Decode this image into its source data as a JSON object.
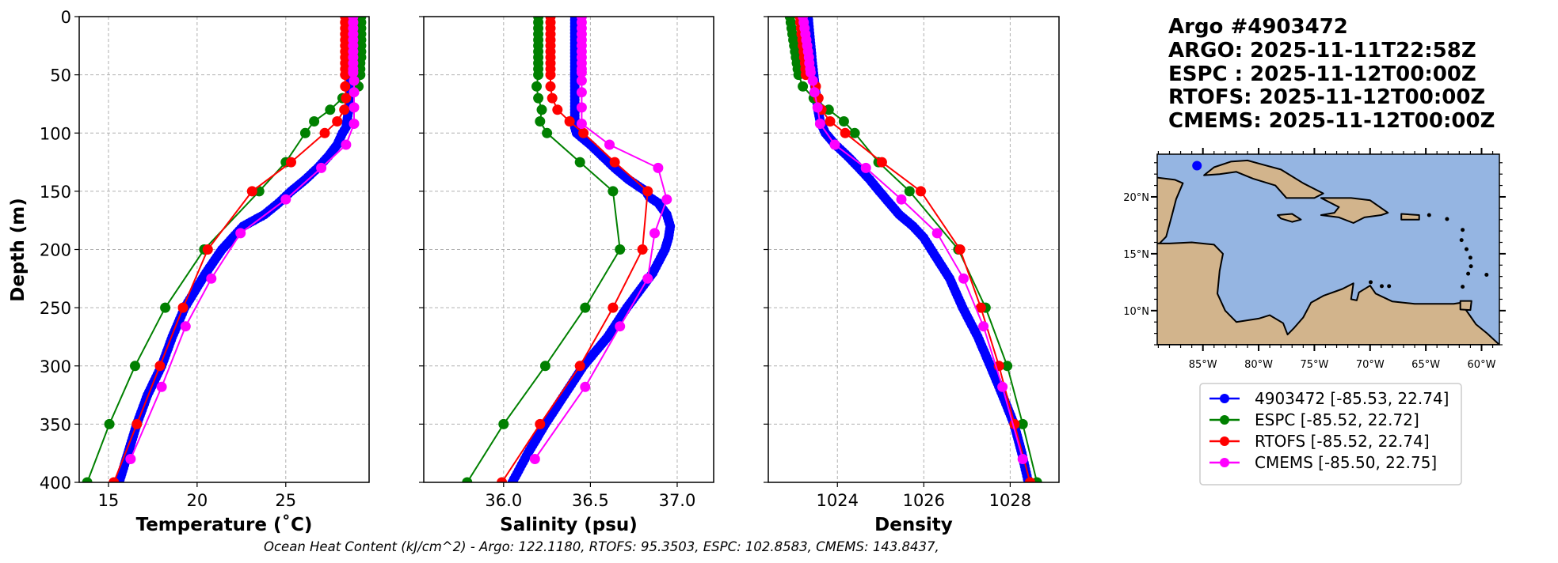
{
  "chart_data": [
    {
      "type": "line",
      "id": "temperature",
      "xlabel": "Temperature (˚C)",
      "ylabel": "Depth (m)",
      "xlim": [
        13.35,
        29.7
      ],
      "ylim": [
        400,
        0
      ],
      "xticks": [
        15,
        20,
        25
      ],
      "yticks": [
        0,
        50,
        100,
        150,
        200,
        250,
        300,
        350,
        400
      ],
      "grid": true,
      "series": [
        {
          "name": "ESPC",
          "color": "#008000",
          "style": "model",
          "depth": [
            0,
            5,
            10,
            15,
            20,
            25,
            30,
            35,
            40,
            45,
            50,
            60,
            70,
            80,
            90,
            100,
            125,
            150,
            200,
            250,
            300,
            350,
            400
          ],
          "values": [
            29.25,
            29.25,
            29.25,
            29.25,
            29.25,
            29.25,
            29.25,
            29.25,
            29.2,
            29.2,
            29.2,
            29.1,
            28.2,
            27.5,
            26.6,
            26.1,
            25.0,
            23.5,
            20.4,
            18.2,
            16.5,
            15.05,
            13.8
          ]
        },
        {
          "name": "RTOFS",
          "color": "#ff0000",
          "style": "model",
          "depth": [
            0,
            5,
            10,
            15,
            20,
            25,
            30,
            35,
            40,
            45,
            50,
            60,
            70,
            80,
            90,
            100,
            125,
            150,
            200,
            250,
            300,
            350,
            400
          ],
          "values": [
            28.35,
            28.35,
            28.35,
            28.35,
            28.35,
            28.35,
            28.35,
            28.35,
            28.35,
            28.35,
            28.35,
            28.35,
            28.4,
            28.3,
            27.9,
            27.2,
            25.3,
            23.1,
            20.6,
            19.2,
            17.9,
            16.6,
            15.3
          ]
        },
        {
          "name": "CMEMS",
          "color": "#ff00ff",
          "style": "model",
          "depth": [
            0,
            5,
            10,
            15,
            20,
            25,
            30,
            35,
            40,
            45,
            48,
            55,
            65,
            78,
            92,
            110,
            130,
            157,
            186,
            225,
            266,
            318,
            380
          ],
          "values": [
            28.8,
            28.8,
            28.8,
            28.8,
            28.8,
            28.8,
            28.8,
            28.8,
            28.8,
            28.8,
            28.8,
            28.85,
            28.85,
            28.85,
            28.85,
            28.4,
            27.0,
            25.0,
            22.45,
            20.8,
            19.35,
            18.0,
            16.25
          ]
        },
        {
          "name": "4903472",
          "color": "#0000ff",
          "style": "argo",
          "depth": [
            0,
            20,
            40,
            60,
            80,
            95,
            100,
            110,
            120,
            130,
            140,
            150,
            160,
            170,
            180,
            190,
            200,
            220,
            250,
            275,
            300,
            325,
            350,
            375,
            400
          ],
          "values": [
            28.7,
            28.7,
            28.7,
            28.65,
            28.55,
            28.4,
            28.2,
            27.9,
            27.4,
            26.8,
            26.1,
            25.3,
            24.6,
            23.8,
            22.6,
            22.0,
            21.4,
            20.5,
            19.3,
            18.6,
            18.0,
            17.2,
            16.6,
            16.1,
            15.6
          ]
        }
      ]
    },
    {
      "type": "line",
      "id": "salinity",
      "xlabel": "Salinity (psu)",
      "ylabel": "",
      "xlim": [
        35.54,
        37.21
      ],
      "ylim": [
        400,
        0
      ],
      "xticks": [
        36.0,
        36.5,
        37.0
      ],
      "xtick_labels": [
        "36.0",
        "36.5",
        "37.0"
      ],
      "yticks": [
        0,
        50,
        100,
        150,
        200,
        250,
        300,
        350,
        400
      ],
      "grid": true,
      "series": [
        {
          "name": "ESPC",
          "color": "#008000",
          "style": "model",
          "depth": [
            0,
            5,
            10,
            15,
            20,
            25,
            30,
            35,
            40,
            45,
            50,
            60,
            70,
            80,
            90,
            100,
            125,
            150,
            200,
            250,
            300,
            350,
            400
          ],
          "values": [
            36.2,
            36.2,
            36.2,
            36.2,
            36.2,
            36.2,
            36.2,
            36.2,
            36.2,
            36.2,
            36.2,
            36.19,
            36.2,
            36.22,
            36.21,
            36.25,
            36.44,
            36.63,
            36.67,
            36.47,
            36.24,
            36.0,
            35.79
          ]
        },
        {
          "name": "RTOFS",
          "color": "#ff0000",
          "style": "model",
          "depth": [
            0,
            5,
            10,
            15,
            20,
            25,
            30,
            35,
            40,
            45,
            50,
            60,
            70,
            80,
            90,
            100,
            125,
            150,
            200,
            250,
            300,
            350,
            400
          ],
          "values": [
            36.27,
            36.27,
            36.27,
            36.27,
            36.27,
            36.27,
            36.27,
            36.27,
            36.27,
            36.27,
            36.27,
            36.27,
            36.28,
            36.31,
            36.38,
            36.46,
            36.64,
            36.83,
            36.8,
            36.63,
            36.44,
            36.21,
            35.99
          ]
        },
        {
          "name": "CMEMS",
          "color": "#ff00ff",
          "style": "model",
          "depth": [
            0,
            5,
            10,
            15,
            20,
            25,
            30,
            35,
            40,
            45,
            48,
            55,
            65,
            78,
            92,
            110,
            130,
            157,
            186,
            225,
            266,
            318,
            380
          ],
          "values": [
            36.45,
            36.45,
            36.45,
            36.45,
            36.45,
            36.45,
            36.45,
            36.45,
            36.45,
            36.45,
            36.45,
            36.45,
            36.45,
            36.45,
            36.45,
            36.61,
            36.89,
            36.94,
            36.87,
            36.83,
            36.67,
            36.47,
            36.18
          ]
        },
        {
          "name": "4903472",
          "color": "#0000ff",
          "style": "argo",
          "depth": [
            0,
            20,
            40,
            60,
            80,
            95,
            100,
            110,
            120,
            130,
            140,
            150,
            155,
            160,
            170,
            180,
            190,
            200,
            220,
            250,
            275,
            300,
            325,
            350,
            375,
            400
          ],
          "values": [
            36.41,
            36.41,
            36.41,
            36.41,
            36.41,
            36.41,
            36.42,
            36.5,
            36.57,
            36.64,
            36.72,
            36.82,
            36.84,
            36.89,
            36.94,
            36.96,
            36.95,
            36.93,
            36.86,
            36.71,
            36.6,
            36.46,
            36.35,
            36.24,
            36.14,
            36.05
          ]
        }
      ]
    },
    {
      "type": "line",
      "id": "density",
      "xlabel": "Density",
      "ylabel": "",
      "xlim": [
        1022.4,
        1029.13
      ],
      "ylim": [
        400,
        0
      ],
      "xticks": [
        1024,
        1026,
        1028
      ],
      "yticks": [
        0,
        50,
        100,
        150,
        200,
        250,
        300,
        350,
        400
      ],
      "grid": true,
      "series": [
        {
          "name": "ESPC",
          "color": "#008000",
          "style": "model",
          "depth": [
            0,
            5,
            10,
            15,
            20,
            25,
            30,
            35,
            40,
            45,
            50,
            60,
            70,
            80,
            90,
            100,
            125,
            150,
            200,
            250,
            300,
            350,
            400
          ],
          "values": [
            1022.9,
            1022.92,
            1022.94,
            1022.96,
            1022.98,
            1023.0,
            1023.02,
            1023.04,
            1023.06,
            1023.08,
            1023.1,
            1023.2,
            1023.45,
            1023.8,
            1024.15,
            1024.4,
            1024.95,
            1025.67,
            1026.8,
            1027.43,
            1027.93,
            1028.29,
            1028.62
          ]
        },
        {
          "name": "RTOFS",
          "color": "#ff0000",
          "style": "model",
          "depth": [
            0,
            5,
            10,
            15,
            20,
            25,
            30,
            35,
            40,
            45,
            50,
            60,
            70,
            80,
            90,
            100,
            125,
            150,
            200,
            250,
            300,
            350,
            400
          ],
          "values": [
            1023.13,
            1023.14,
            1023.16,
            1023.17,
            1023.19,
            1023.2,
            1023.22,
            1023.23,
            1023.25,
            1023.26,
            1023.27,
            1023.5,
            1023.56,
            1023.63,
            1023.83,
            1024.18,
            1025.03,
            1025.93,
            1026.84,
            1027.32,
            1027.74,
            1028.1,
            1028.46
          ]
        },
        {
          "name": "CMEMS",
          "color": "#ff00ff",
          "style": "model",
          "depth": [
            0,
            5,
            10,
            15,
            20,
            25,
            30,
            35,
            40,
            45,
            48,
            55,
            65,
            78,
            92,
            110,
            130,
            157,
            186,
            225,
            266,
            318,
            380
          ],
          "values": [
            1023.2,
            1023.22,
            1023.24,
            1023.26,
            1023.28,
            1023.3,
            1023.32,
            1023.34,
            1023.35,
            1023.37,
            1023.38,
            1023.43,
            1023.47,
            1023.54,
            1023.6,
            1023.94,
            1024.66,
            1025.48,
            1026.31,
            1026.92,
            1027.38,
            1027.82,
            1028.29
          ]
        },
        {
          "name": "4903472",
          "color": "#0000ff",
          "style": "argo",
          "depth": [
            0,
            20,
            40,
            60,
            80,
            90,
            100,
            110,
            120,
            130,
            140,
            150,
            160,
            170,
            180,
            190,
            200,
            225,
            250,
            275,
            300,
            325,
            350,
            375,
            400
          ],
          "values": [
            1023.32,
            1023.37,
            1023.42,
            1023.48,
            1023.55,
            1023.6,
            1023.72,
            1023.95,
            1024.24,
            1024.5,
            1024.75,
            1024.97,
            1025.2,
            1025.43,
            1025.75,
            1026.0,
            1026.17,
            1026.6,
            1026.9,
            1027.25,
            1027.54,
            1027.82,
            1028.09,
            1028.27,
            1028.42
          ]
        }
      ]
    },
    {
      "type": "scatter",
      "id": "location-map",
      "title": "",
      "xlim": [
        -89.1,
        -58.4
      ],
      "ylim": [
        7.0,
        23.75
      ],
      "xticks": [
        -85,
        -80,
        -75,
        -70,
        -65,
        -60
      ],
      "xtick_labels": [
        "85°W",
        "80°W",
        "75°W",
        "70°W",
        "65°W",
        "60°W"
      ],
      "yticks": [
        10,
        15,
        20
      ],
      "ytick_labels": [
        "10°N",
        "15°N",
        "20°N"
      ],
      "points": [
        {
          "name": "4903472",
          "lon": -85.53,
          "lat": 22.74,
          "color": "#0000ff"
        }
      ],
      "ocean_color": "#95b5e2",
      "land_color": "#d2b48c"
    }
  ],
  "title_block": {
    "lines": [
      "Argo #4903472",
      "ARGO: 2025-11-11T22:58Z",
      "ESPC : 2025-11-12T00:00Z",
      "RTOFS: 2025-11-12T00:00Z",
      "CMEMS: 2025-11-12T00:00Z"
    ]
  },
  "legend": {
    "placement": "below-map",
    "entries": [
      {
        "label": "4903472 [-85.53, 22.74]",
        "color": "#0000ff"
      },
      {
        "label": "ESPC [-85.52, 22.72]",
        "color": "#008000"
      },
      {
        "label": "RTOFS [-85.52, 22.74]",
        "color": "#ff0000"
      },
      {
        "label": "CMEMS [-85.50, 22.75]",
        "color": "#ff00ff"
      }
    ]
  },
  "footer": {
    "text": "Ocean Heat Content (kJ/cm^2) - Argo: 122.1180,  RTOFS: 95.3503,  ESPC: 102.8583,  CMEMS: 143.8437,",
    "ohc": {
      "Argo": 122.118,
      "RTOFS": 95.3503,
      "ESPC": 102.8583,
      "CMEMS": 143.8437
    },
    "units": "kJ/cm^2"
  }
}
